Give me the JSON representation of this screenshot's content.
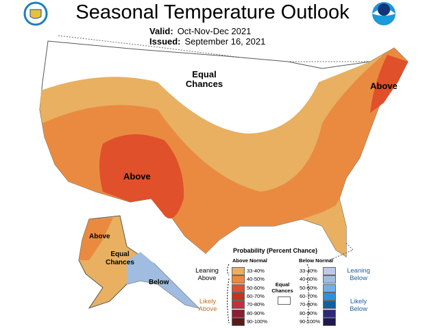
{
  "title": "Seasonal Temperature Outlook",
  "valid_label": "Valid:",
  "valid": "Oct-Nov-Dec 2021",
  "issued_label": "Issued:",
  "issued": "September 16, 2021",
  "map_labels": {
    "equal_chances": "Equal Chances",
    "above_sw": "Above",
    "above_ne": "Above",
    "ak_above": "Above",
    "ak_ec": "Equal Chances",
    "ak_below": "Below"
  },
  "legend": {
    "title": "Probability (Percent Chance)",
    "above_header": "Above Normal",
    "below_header": "Below Normal",
    "leaning_above": "Leaning Above",
    "likely_above": "Likely Above",
    "leaning_below": "Leaning Below",
    "likely_below": "Likely Below",
    "equal_chances": "Equal Chances",
    "above": [
      {
        "range": "33-40%",
        "color": "#e8b060"
      },
      {
        "range": "40-50%",
        "color": "#ea8a40"
      },
      {
        "range": "50-60%",
        "color": "#e0502a"
      },
      {
        "range": "60-70%",
        "color": "#c83020"
      },
      {
        "range": "70-80%",
        "color": "#c03040"
      },
      {
        "range": "80-90%",
        "color": "#8a2030"
      },
      {
        "range": "90-100%",
        "color": "#5a1a1a"
      }
    ],
    "below": [
      {
        "range": "33-40%",
        "color": "#c0c8e8"
      },
      {
        "range": "40-50%",
        "color": "#a0bce0"
      },
      {
        "range": "50-60%",
        "color": "#70b0e8"
      },
      {
        "range": "60-70%",
        "color": "#3090d8"
      },
      {
        "range": "70-80%",
        "color": "#1060a0"
      },
      {
        "range": "80-90%",
        "color": "#302878"
      },
      {
        "range": "90-100%",
        "color": "#201850"
      }
    ]
  }
}
